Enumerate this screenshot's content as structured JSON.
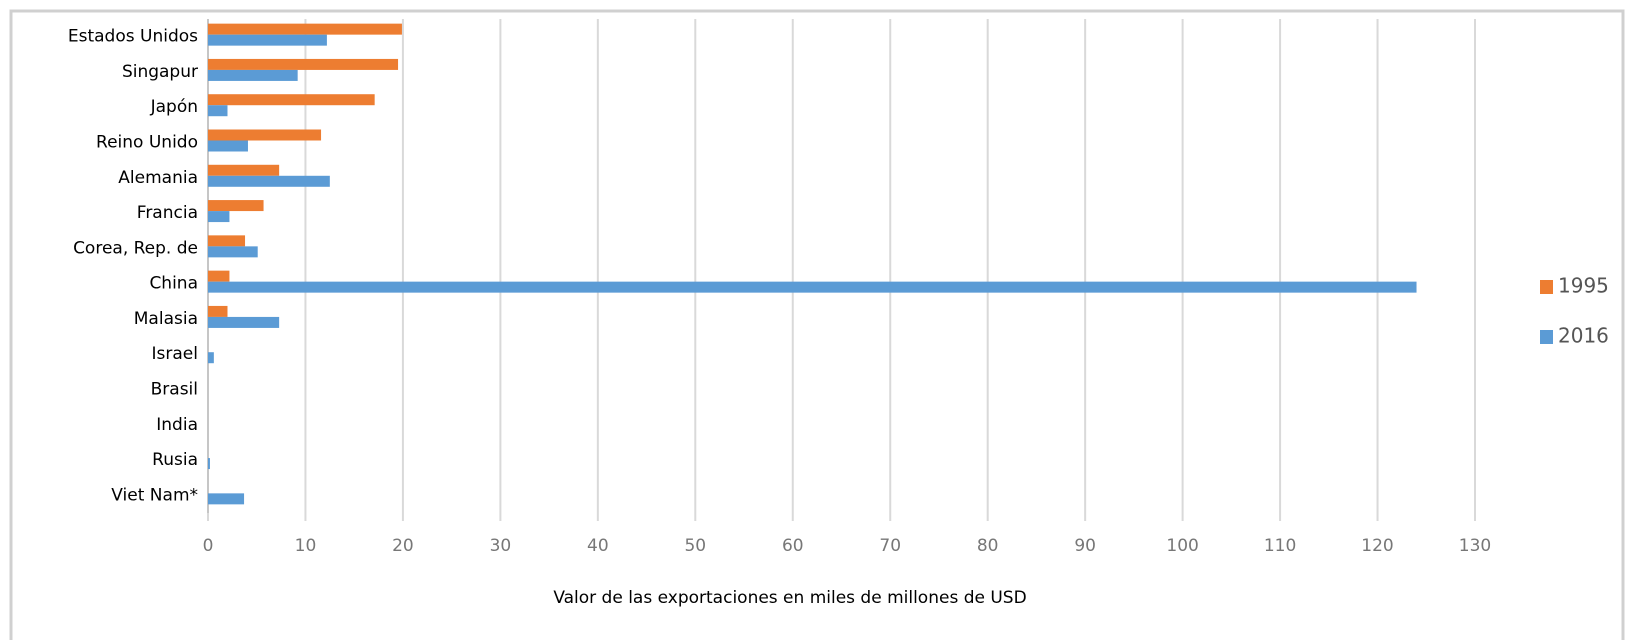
{
  "chart_data": {
    "type": "barh",
    "xlabel": "Valor de las exportaciones en miles de millones de USD",
    "categories": [
      "Estados Unidos",
      "Singapur",
      "Japón",
      "Reino Unido",
      "Alemania",
      "Francia",
      "Corea, Rep. de",
      "China",
      "Malasia",
      "Israel",
      "Brasil",
      "India",
      "Rusia",
      "Viet Nam*"
    ],
    "series": [
      {
        "name": "1995",
        "color": "#ed7d31",
        "values": [
          19.9,
          19.5,
          17.1,
          11.6,
          7.3,
          5.7,
          3.8,
          2.2,
          2.0,
          0,
          0,
          0,
          0,
          0
        ]
      },
      {
        "name": "2016",
        "color": "#5b9bd5",
        "values": [
          12.2,
          9.2,
          2.0,
          4.1,
          12.5,
          2.2,
          5.1,
          124.0,
          7.3,
          0.6,
          0,
          0,
          0.2,
          3.7
        ]
      }
    ],
    "xlim": [
      0,
      130
    ],
    "xticks": [
      0,
      10,
      20,
      30,
      40,
      50,
      60,
      70,
      80,
      90,
      100,
      110,
      120,
      130
    ],
    "grid": true,
    "legend": "right"
  }
}
